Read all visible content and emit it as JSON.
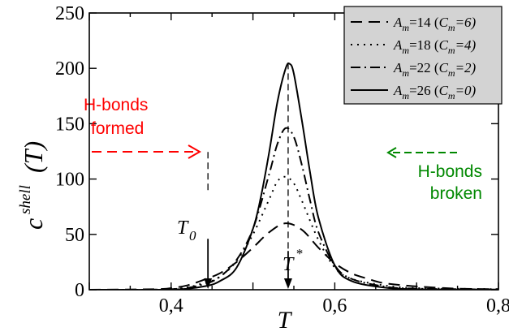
{
  "chart_data": {
    "type": "line",
    "xlabel": "T",
    "ylabel_main": "c",
    "ylabel_sup": "shell",
    "ylabel_arg": "(T)",
    "xlim": [
      0.3,
      0.8
    ],
    "ylim": [
      0,
      250
    ],
    "xticks": [
      0.4,
      0.6,
      0.8
    ],
    "xtick_labels": [
      "0,4",
      "0,6",
      "0,8"
    ],
    "yticks": [
      0,
      50,
      100,
      150,
      200,
      250
    ],
    "ytick_labels": [
      "0",
      "50",
      "100",
      "150",
      "200",
      "250"
    ],
    "legend_position": "top-right",
    "series": [
      {
        "name": "A_m=14 (C_m=6)",
        "style": "dashed",
        "x": [
          0.3,
          0.38,
          0.4,
          0.42,
          0.44,
          0.46,
          0.48,
          0.5,
          0.52,
          0.54,
          0.56,
          0.58,
          0.6,
          0.62,
          0.64,
          0.66,
          0.7,
          0.75,
          0.8
        ],
        "y": [
          0,
          0.5,
          1.5,
          4,
          9,
          15,
          25,
          38,
          52,
          60,
          54,
          38,
          24,
          15,
          10,
          6,
          3,
          1,
          0.5
        ]
      },
      {
        "name": "A_m=18 (C_m=4)",
        "style": "dotted",
        "x": [
          0.3,
          0.4,
          0.44,
          0.46,
          0.48,
          0.5,
          0.52,
          0.53,
          0.54,
          0.55,
          0.56,
          0.58,
          0.6,
          0.62,
          0.66,
          0.7,
          0.8
        ],
        "y": [
          0,
          0.5,
          6,
          12,
          26,
          50,
          82,
          98,
          102,
          96,
          80,
          45,
          20,
          10,
          4,
          1.5,
          0.5
        ]
      },
      {
        "name": "A_m=22 (C_m=2)",
        "style": "dashdot",
        "x": [
          0.3,
          0.4,
          0.44,
          0.46,
          0.48,
          0.5,
          0.52,
          0.53,
          0.54,
          0.55,
          0.56,
          0.57,
          0.58,
          0.6,
          0.62,
          0.66,
          0.7,
          0.8
        ],
        "y": [
          0,
          0.5,
          5,
          12,
          27,
          55,
          105,
          132,
          146,
          138,
          112,
          80,
          52,
          22,
          10,
          3,
          1,
          0.2
        ]
      },
      {
        "name": "A_m=26 (C_m=0)",
        "style": "solid",
        "x": [
          0.3,
          0.4,
          0.44,
          0.46,
          0.48,
          0.5,
          0.51,
          0.52,
          0.53,
          0.54,
          0.545,
          0.55,
          0.56,
          0.57,
          0.58,
          0.6,
          0.62,
          0.66,
          0.7,
          0.8
        ],
        "y": [
          0,
          0.2,
          3,
          8,
          20,
          55,
          85,
          125,
          170,
          200,
          204,
          195,
          152,
          105,
          65,
          22,
          8,
          2,
          0.5,
          0
        ]
      }
    ],
    "legend": [
      {
        "A": "A",
        "Asub": "m",
        "Aval": "=14 (",
        "C": "C",
        "Csub": "m",
        "Cval": "=6)"
      },
      {
        "A": "A",
        "Asub": "m",
        "Aval": "=18 (",
        "C": "C",
        "Csub": "m",
        "Cval": "=4)"
      },
      {
        "A": "A",
        "Asub": "m",
        "Aval": "=22 (",
        "C": "C",
        "Csub": "m",
        "Cval": "=2)"
      },
      {
        "A": "A",
        "Asub": "m",
        "Aval": "=26 (",
        "C": "C",
        "Csub": "m",
        "Cval": "=0)"
      }
    ],
    "annotations": {
      "formed_line1": "H-bonds",
      "formed_line2": "formed",
      "broken_line1": "H-bonds",
      "broken_line2": "broken",
      "t0_main": "T",
      "t0_sub": "0",
      "tstar_main": "T",
      "tstar_sup": "*",
      "t0": 0.445,
      "tstar": 0.543
    },
    "colors": {
      "formed": "#ff0000",
      "broken": "#008800",
      "legend_bg": "#d3d3d3"
    }
  }
}
